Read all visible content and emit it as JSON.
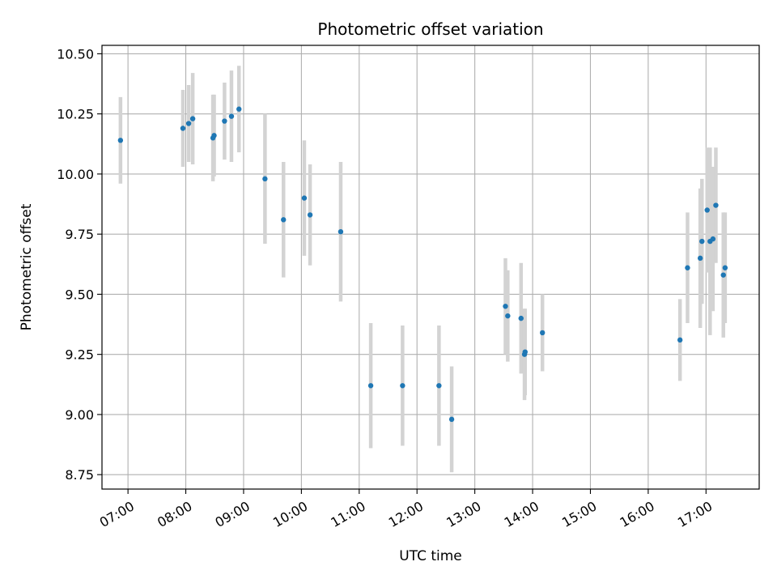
{
  "chart_data": {
    "type": "scatter",
    "title": "Photometric offset variation",
    "xlabel": "UTC time",
    "ylabel": "Photometric offset",
    "x_unit": "hours (UTC)",
    "xlim": [
      6.55,
      17.92
    ],
    "ylim": [
      8.69,
      10.535
    ],
    "grid": true,
    "x_ticks": [
      7,
      8,
      9,
      10,
      11,
      12,
      13,
      14,
      15,
      16,
      17
    ],
    "x_tick_labels": [
      "07:00",
      "08:00",
      "09:00",
      "10:00",
      "11:00",
      "12:00",
      "13:00",
      "14:00",
      "15:00",
      "16:00",
      "17:00"
    ],
    "y_ticks": [
      8.75,
      9.0,
      9.25,
      9.5,
      9.75,
      10.0,
      10.25,
      10.5
    ],
    "y_tick_labels": [
      "8.75",
      "9.00",
      "9.25",
      "9.50",
      "9.75",
      "10.00",
      "10.25",
      "10.50"
    ],
    "colors": {
      "point": "#1f77b4",
      "errorbar": "#d3d3d3",
      "grid": "#b0b0b0"
    },
    "series": [
      {
        "points": [
          {
            "x": 6.87,
            "y": 10.14,
            "err": 0.18
          },
          {
            "x": 7.95,
            "y": 10.19,
            "err": 0.16
          },
          {
            "x": 8.05,
            "y": 10.21,
            "err": 0.16
          },
          {
            "x": 8.12,
            "y": 10.23,
            "err": 0.19
          },
          {
            "x": 8.47,
            "y": 10.15,
            "err": 0.18
          },
          {
            "x": 8.49,
            "y": 10.16,
            "err": 0.17
          },
          {
            "x": 8.67,
            "y": 10.22,
            "err": 0.16
          },
          {
            "x": 8.79,
            "y": 10.24,
            "err": 0.19
          },
          {
            "x": 8.92,
            "y": 10.27,
            "err": 0.18
          },
          {
            "x": 9.37,
            "y": 9.98,
            "err": 0.27
          },
          {
            "x": 9.69,
            "y": 9.81,
            "err": 0.24
          },
          {
            "x": 10.05,
            "y": 9.9,
            "err": 0.24
          },
          {
            "x": 10.15,
            "y": 9.83,
            "err": 0.21
          },
          {
            "x": 10.68,
            "y": 9.76,
            "err": 0.29
          },
          {
            "x": 11.2,
            "y": 9.12,
            "err": 0.26
          },
          {
            "x": 11.75,
            "y": 9.12,
            "err": 0.25
          },
          {
            "x": 12.38,
            "y": 9.12,
            "err": 0.25
          },
          {
            "x": 12.6,
            "y": 8.98,
            "err": 0.22
          },
          {
            "x": 13.53,
            "y": 9.45,
            "err": 0.2
          },
          {
            "x": 13.57,
            "y": 9.41,
            "err": 0.19
          },
          {
            "x": 13.8,
            "y": 9.4,
            "err": 0.23
          },
          {
            "x": 13.86,
            "y": 9.25,
            "err": 0.19
          },
          {
            "x": 13.87,
            "y": 9.26,
            "err": 0.18
          },
          {
            "x": 14.17,
            "y": 9.34,
            "err": 0.16
          },
          {
            "x": 16.55,
            "y": 9.31,
            "err": 0.17
          },
          {
            "x": 16.68,
            "y": 9.61,
            "err": 0.23
          },
          {
            "x": 16.9,
            "y": 9.65,
            "err": 0.29
          },
          {
            "x": 16.93,
            "y": 9.72,
            "err": 0.26
          },
          {
            "x": 17.02,
            "y": 9.85,
            "err": 0.26
          },
          {
            "x": 17.07,
            "y": 9.72,
            "err": 0.39
          },
          {
            "x": 17.12,
            "y": 9.73,
            "err": 0.3
          },
          {
            "x": 17.17,
            "y": 9.87,
            "err": 0.24
          },
          {
            "x": 17.3,
            "y": 9.58,
            "err": 0.26
          },
          {
            "x": 17.33,
            "y": 9.61,
            "err": 0.23
          }
        ]
      }
    ]
  }
}
